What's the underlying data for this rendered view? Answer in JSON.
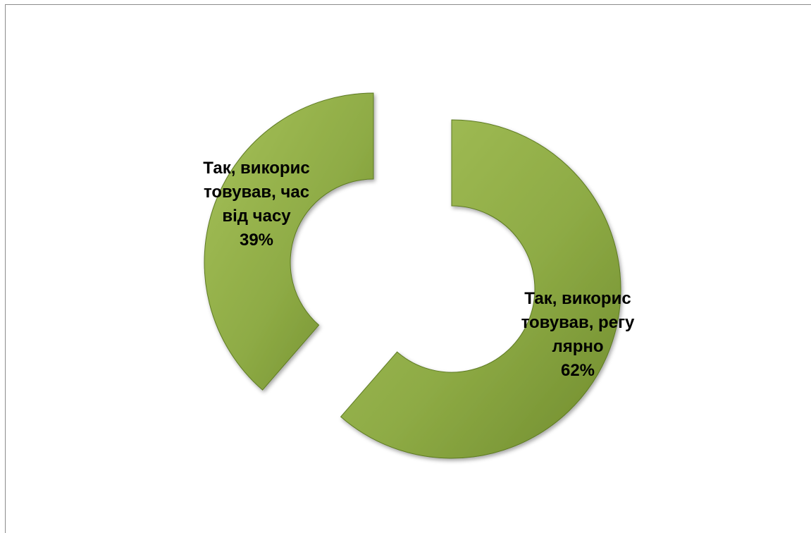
{
  "chart_data": {
    "type": "pie",
    "variant": "doughnut-exploded",
    "title": "",
    "slices": [
      {
        "label_lines": [
          "Так, викорис",
          "товував, регу",
          "лярно"
        ],
        "percent_label": "62%",
        "value": 62
      },
      {
        "label_lines": [
          "Так, викорис",
          "товував, час",
          "від часу"
        ],
        "percent_label": "39%",
        "value": 39
      }
    ],
    "legend": "none",
    "colors": {
      "fill_light": "#a6c15a",
      "fill_mid": "#8eab45",
      "fill_dark": "#6f8b2d",
      "edge": "#5d7a22",
      "background": "#ffffff"
    }
  }
}
